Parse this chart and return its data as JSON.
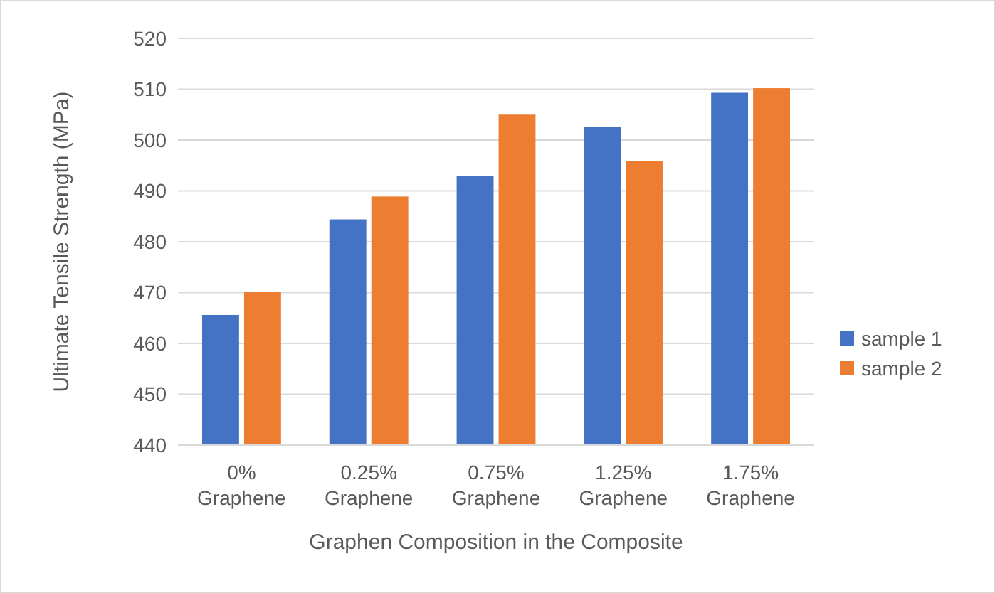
{
  "chart_data": {
    "type": "bar",
    "xlabel": "Graphen Composition in the Composite",
    "ylabel": "Ultimate Tensile Strength (MPa)",
    "categories": [
      "0% Graphene",
      "0.25% Graphene",
      "0.75% Graphene",
      "1.25% Graphene",
      "1.75% Graphene"
    ],
    "series": [
      {
        "name": "sample 1",
        "color": "#4472c4",
        "values": [
          465.6,
          484.4,
          492.9,
          502.6,
          509.3
        ]
      },
      {
        "name": "sample 2",
        "color": "#ed7d31",
        "values": [
          470.2,
          488.9,
          505.0,
          495.9,
          510.2
        ]
      }
    ],
    "ylim": [
      440,
      520
    ],
    "yticks": [
      440,
      450,
      460,
      470,
      480,
      490,
      500,
      510,
      520
    ],
    "grid": "y",
    "legend": "right"
  }
}
